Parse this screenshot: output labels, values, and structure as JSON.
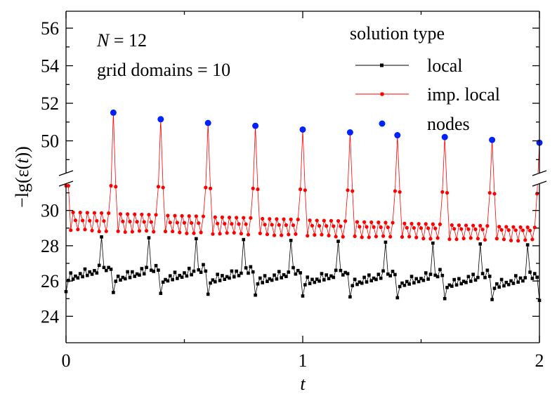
{
  "chart_data": {
    "type": "line",
    "annotations": {
      "n_var": "N",
      "n_rest": " = 12",
      "grid": "grid domains = 10"
    },
    "xlabel": "t",
    "ylabel": {
      "prefix": "−lg(",
      "eps": "ε",
      "open": "(",
      "t": "t",
      "close": "))"
    },
    "xlim": [
      0,
      2
    ],
    "x_ticks": [
      0,
      1,
      2
    ],
    "x_tick_labels": [
      "0",
      "1",
      "2"
    ],
    "y_axis_broken": true,
    "y_lower_range": [
      22.5,
      31.5
    ],
    "y_upper_range": [
      48.3,
      56.9
    ],
    "y_ticks_lower": [
      24,
      26,
      28,
      30
    ],
    "y_tick_labels_lower": [
      "24",
      "26",
      "28",
      "30"
    ],
    "y_ticks_upper": [
      50,
      52,
      54,
      56
    ],
    "y_tick_labels_upper": [
      "50",
      "52",
      "54",
      "56"
    ],
    "legend": {
      "title": "solution type",
      "position": "top-right",
      "entries": [
        "local",
        "imp. local",
        "nodes"
      ]
    },
    "colors": {
      "local": "#000000",
      "imp_local": "#ff0000",
      "nodes": "#0022ff"
    },
    "series": [
      {
        "name": "nodes",
        "x": [
          0.2,
          0.4,
          0.6,
          0.8,
          1.0,
          1.2,
          1.4,
          1.6,
          1.8,
          2.0
        ],
        "y": [
          51.5,
          51.15,
          50.95,
          50.8,
          50.6,
          50.45,
          50.3,
          50.2,
          50.05,
          49.9
        ]
      },
      {
        "name": "imp. local",
        "description": "dense time series sampled every 0.01 with spikes at the nodes",
        "baseline_start": 28.9,
        "baseline_end": 28.3,
        "spike_at_nodes": [
          51.5,
          51.15,
          50.95,
          50.8,
          50.6,
          50.45,
          50.3,
          50.2,
          50.05,
          49.9
        ],
        "near_node_peak": 31.4
      },
      {
        "name": "local",
        "description": "sawtooth pattern repeating each grid domain of width 0.2",
        "segment_start": 26.0,
        "segment_end": 26.7,
        "drift_per_domain": -0.05,
        "spike_value": 28.5
      }
    ]
  }
}
